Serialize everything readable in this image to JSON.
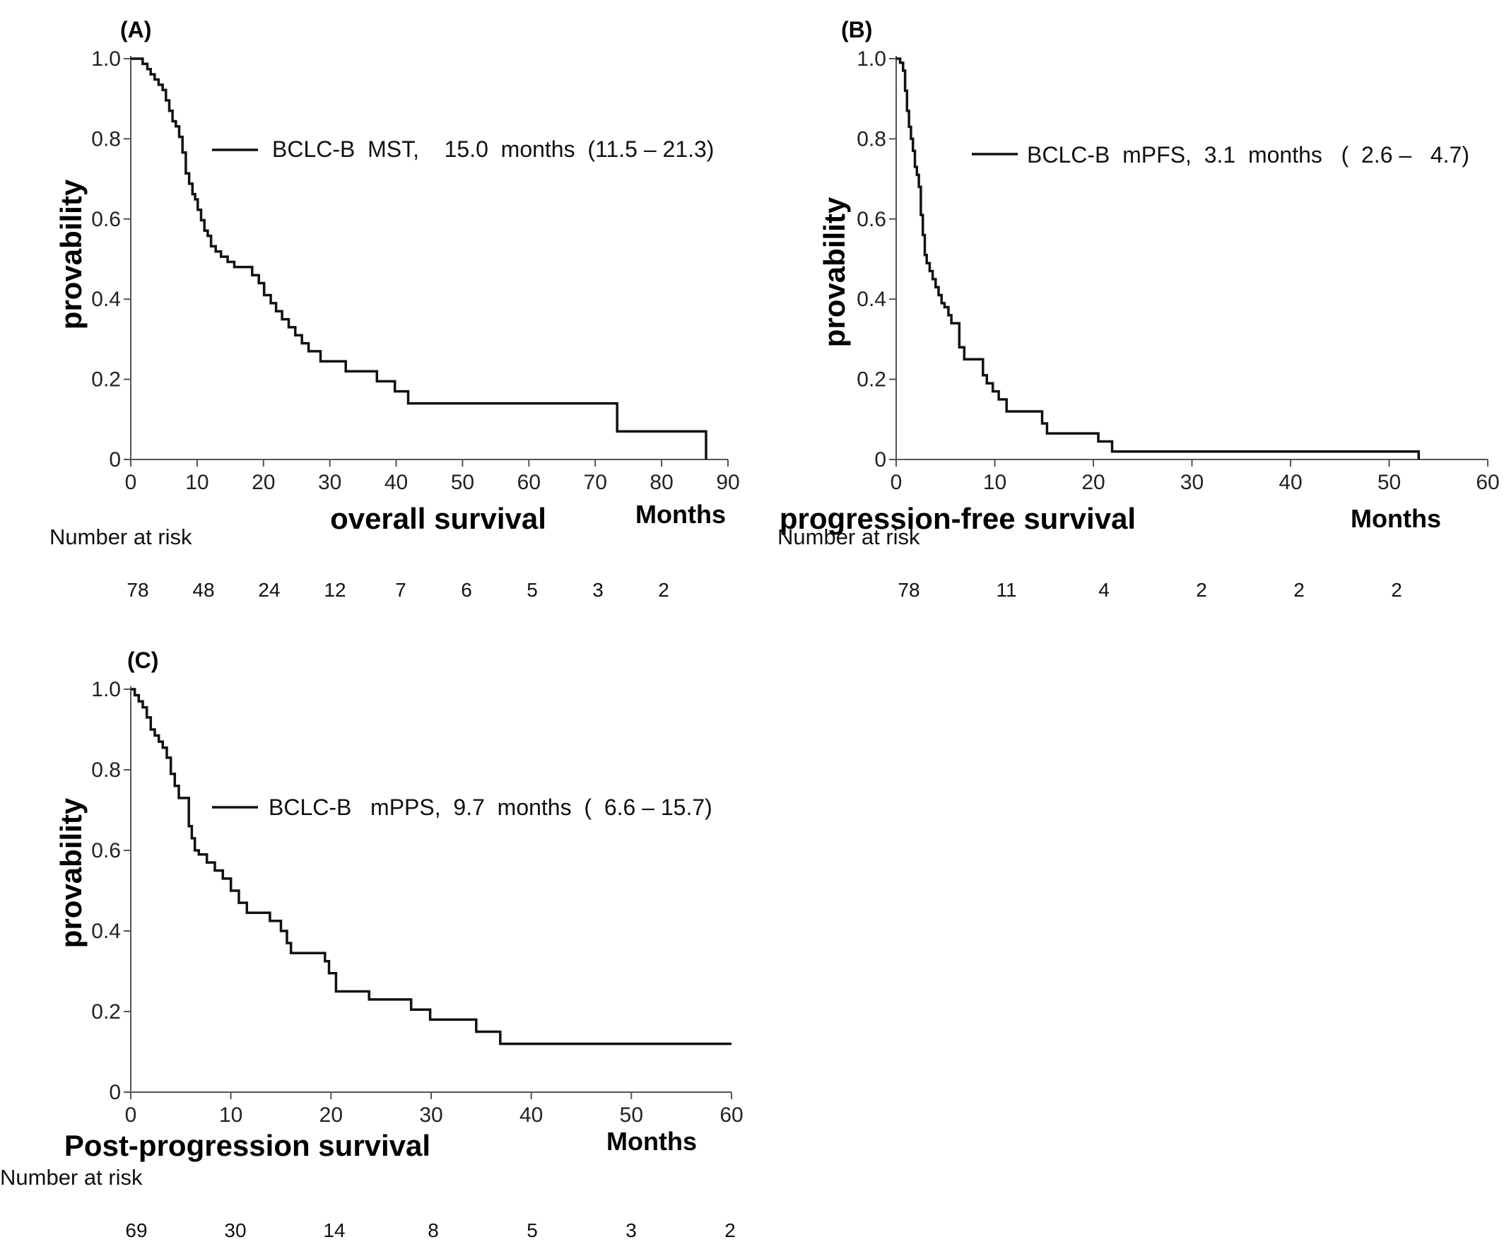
{
  "chart_data": [
    {
      "type": "line",
      "panel_label": "(A)",
      "ylabel": "provability",
      "xlabel": "overall survival",
      "xunit": "Months",
      "xlim": [
        0,
        90
      ],
      "ylim": [
        0,
        1
      ],
      "xticks": [
        "0",
        "10",
        "20",
        "30",
        "40",
        "50",
        "60",
        "70",
        "80",
        "90"
      ],
      "yticks": [
        "0",
        "0.2",
        "0.4",
        "0.6",
        "0.8",
        "1.0"
      ],
      "legend": "BCLC-B  MST,    15.0  months  (11.5 – 21.3)",
      "risk_title": "Number at risk",
      "risk_values": [
        "78",
        "48",
        "24",
        "12",
        "7",
        "6",
        "5",
        "3",
        "2"
      ],
      "series": [
        {
          "x": [
            0,
            1.8,
            2.5,
            3,
            3.6,
            4.2,
            4.8,
            5.3,
            5.8,
            6.3,
            6.8,
            7.3,
            7.8,
            8.3,
            8.8,
            9.3,
            9.7,
            10.1,
            10.6,
            11.1,
            11.6,
            12.1,
            12.8,
            13.6,
            14.6,
            15.6,
            18.3,
            19.3,
            20.1,
            21.1,
            21.9,
            22.8,
            23.8,
            24.8,
            25.8,
            26.8,
            28.6,
            32.4,
            37.1,
            39.8,
            41.8,
            73.3,
            86.7
          ],
          "y": [
            1,
            0.987,
            0.974,
            0.961,
            0.948,
            0.935,
            0.922,
            0.896,
            0.87,
            0.844,
            0.831,
            0.805,
            0.766,
            0.714,
            0.688,
            0.662,
            0.649,
            0.623,
            0.597,
            0.571,
            0.558,
            0.532,
            0.519,
            0.506,
            0.493,
            0.48,
            0.46,
            0.44,
            0.41,
            0.39,
            0.37,
            0.35,
            0.33,
            0.31,
            0.29,
            0.27,
            0.245,
            0.22,
            0.195,
            0.17,
            0.14,
            0.07,
            0
          ]
        }
      ]
    },
    {
      "type": "line",
      "panel_label": "(B)",
      "ylabel": "provability",
      "xlabel": "progression-free survival",
      "xunit": "Months",
      "xlim": [
        0,
        60
      ],
      "ylim": [
        0,
        1
      ],
      "xticks": [
        "0",
        "10",
        "20",
        "30",
        "40",
        "50",
        "60"
      ],
      "yticks": [
        "0",
        "0.2",
        "0.4",
        "0.6",
        "0.8",
        "1.0"
      ],
      "legend": "BCLC-B  mPFS,  3.1  months   (  2.6 –   4.7)",
      "risk_title": "Number at risk",
      "risk_values": [
        "78",
        "11",
        "4",
        "2",
        "2",
        "2"
      ],
      "series": [
        {
          "x": [
            0,
            0.4,
            0.7,
            0.9,
            1.1,
            1.3,
            1.5,
            1.7,
            1.9,
            2.1,
            2.3,
            2.5,
            2.7,
            2.9,
            3.1,
            3.4,
            3.7,
            4,
            4.3,
            4.6,
            4.9,
            5.3,
            5.6,
            6.4,
            6.9,
            8.8,
            9.2,
            9.8,
            10.4,
            11.2,
            14.8,
            15.3,
            20.5,
            21.9,
            53
          ],
          "y": [
            1,
            0.99,
            0.97,
            0.92,
            0.87,
            0.83,
            0.8,
            0.77,
            0.73,
            0.71,
            0.68,
            0.61,
            0.56,
            0.51,
            0.49,
            0.47,
            0.45,
            0.43,
            0.41,
            0.39,
            0.38,
            0.36,
            0.34,
            0.28,
            0.25,
            0.21,
            0.19,
            0.17,
            0.15,
            0.12,
            0.09,
            0.065,
            0.045,
            0.02,
            0
          ]
        }
      ]
    },
    {
      "type": "line",
      "panel_label": "(C)",
      "ylabel": "provability",
      "xlabel": "Post-progression survival",
      "xunit": "Months",
      "xlim": [
        0,
        60
      ],
      "ylim": [
        0,
        1
      ],
      "xticks": [
        "0",
        "10",
        "20",
        "30",
        "40",
        "50",
        "60"
      ],
      "yticks": [
        "0",
        "0.2",
        "0.4",
        "0.6",
        "0.8",
        "1.0"
      ],
      "legend": "BCLC-B   mPPS,  9.7  months  (  6.6 – 15.7)",
      "risk_title": "Number at risk",
      "risk_values": [
        "69",
        "30",
        "14",
        "8",
        "5",
        "3",
        "2"
      ],
      "series": [
        {
          "x": [
            0,
            0.4,
            0.8,
            1.2,
            1.6,
            2,
            2.4,
            2.8,
            3.2,
            3.6,
            4,
            4.4,
            4.8,
            5.8,
            6.1,
            6.4,
            6.8,
            7.6,
            8.4,
            9.2,
            10,
            10.8,
            11.6,
            13.9,
            15,
            15.6,
            16,
            19.4,
            19.8,
            20.5,
            23.8,
            28,
            29.9,
            34.5,
            36.9,
            60
          ],
          "y": [
            1,
            0.985,
            0.97,
            0.955,
            0.93,
            0.9,
            0.885,
            0.87,
            0.855,
            0.83,
            0.79,
            0.76,
            0.73,
            0.66,
            0.63,
            0.6,
            0.59,
            0.57,
            0.55,
            0.53,
            0.5,
            0.47,
            0.445,
            0.425,
            0.4,
            0.37,
            0.345,
            0.325,
            0.295,
            0.25,
            0.23,
            0.205,
            0.18,
            0.15,
            0.12,
            0.12
          ]
        }
      ]
    }
  ]
}
